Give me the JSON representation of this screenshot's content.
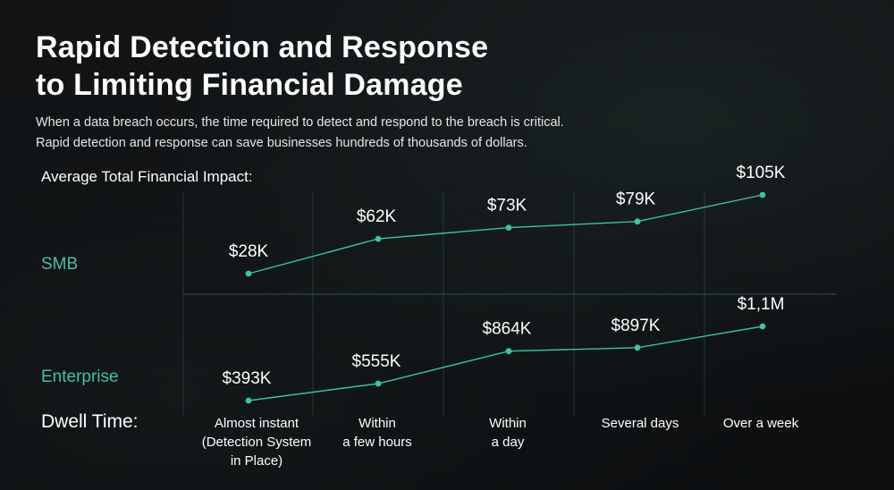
{
  "title": "Rapid Detection and Response\nto Limiting Financial Damage",
  "subtitle": "When a data breach occurs, the time required to detect and respond to the breach is critical.\nRapid detection and response can save businesses hundreds of thousands of dollars.",
  "impact_label": "Average Total Financial Impact:",
  "dwell_label": "Dwell Time:",
  "colors": {
    "accent": "#3fc2a6",
    "background": "#101214",
    "text": "#ffffff"
  },
  "chart_data": {
    "type": "line",
    "title": "Rapid Detection and Response to Limiting Financial Damage",
    "ylabel": "Average Total Financial Impact:",
    "xlabel": "Dwell Time:",
    "categories": [
      "Almost instant\n(Detection System\nin Place)",
      "Within\na few hours",
      "Within\na day",
      "Several days",
      "Over a week"
    ],
    "series": [
      {
        "name": "SMB",
        "values": [
          28000,
          62000,
          73000,
          79000,
          105000
        ],
        "labels": [
          "$28K",
          "$62K",
          "$73K",
          "$79K",
          "$105K"
        ]
      },
      {
        "name": "Enterprise",
        "values": [
          393000,
          555000,
          864000,
          897000,
          1100000
        ],
        "labels": [
          "$393K",
          "$555K",
          "$864K",
          "$897K",
          "$1,1M"
        ]
      }
    ],
    "grid": true
  }
}
